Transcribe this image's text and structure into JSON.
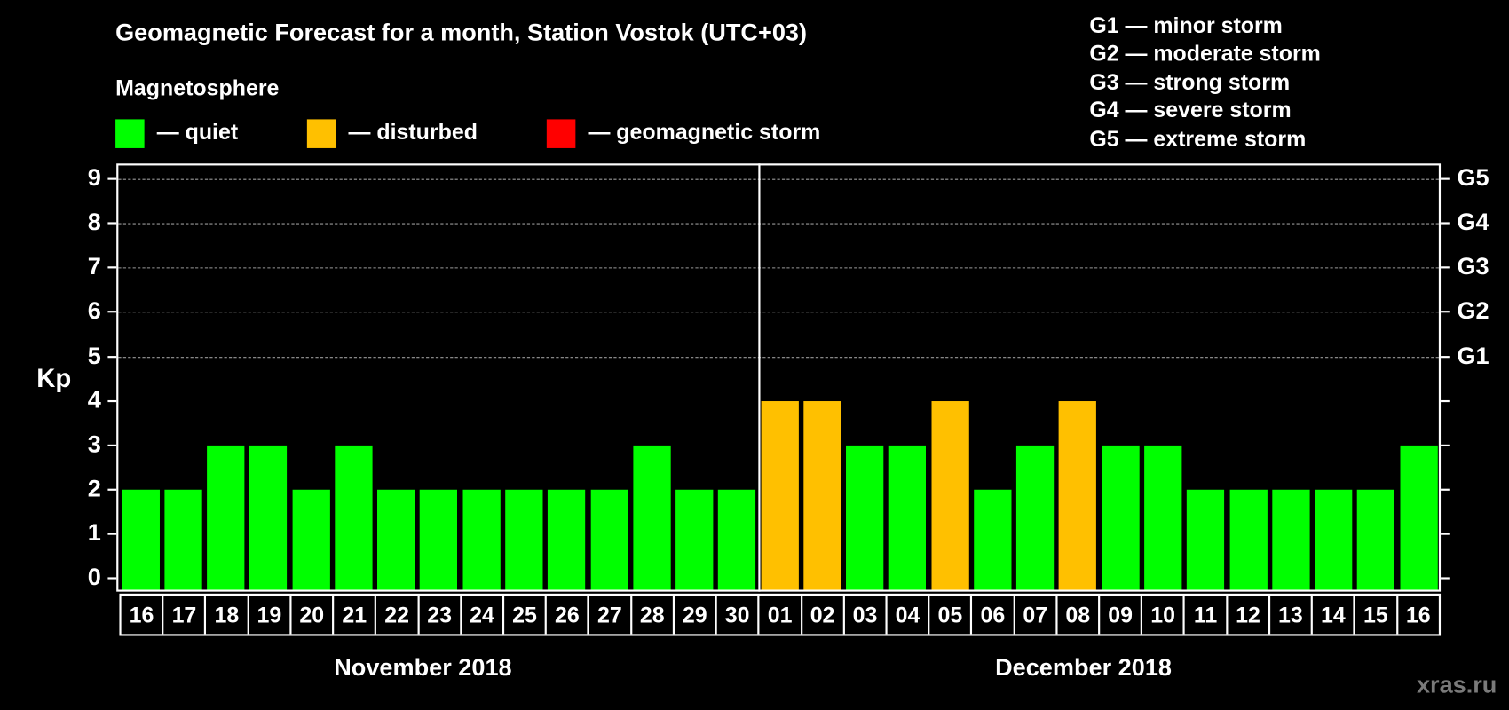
{
  "header": {
    "title": "Geomagnetic Forecast for a month, Station Vostok (UTC+03)",
    "subtitle": "Magnetosphere"
  },
  "legend": [
    {
      "label": "— quiet",
      "color": "#00ff00"
    },
    {
      "label": "— disturbed",
      "color": "#ffc000"
    },
    {
      "label": "— geomagnetic storm",
      "color": "#ff0000"
    }
  ],
  "storm_scale": [
    "G1 — minor storm",
    "G2 — moderate storm",
    "G3 — strong storm",
    "G4 — severe storm",
    "G5 — extreme storm"
  ],
  "axis": {
    "ylabel": "Kp",
    "yticks": [
      "0",
      "1",
      "2",
      "3",
      "4",
      "5",
      "6",
      "7",
      "8",
      "9"
    ],
    "right_labels": {
      "5": "G1",
      "6": "G2",
      "7": "G3",
      "8": "G4",
      "9": "G5"
    }
  },
  "months": {
    "left": "November 2018",
    "right": "December 2018"
  },
  "watermark": "xras.ru",
  "colors": {
    "quiet": "#00ff00",
    "disturbed": "#ffc000",
    "storm": "#ff0000",
    "background": "#000000",
    "grid": "#9a9a9a"
  },
  "chart_data": {
    "type": "bar",
    "title": "Geomagnetic Forecast for a month, Station Vostok (UTC+03)",
    "xlabel": "",
    "ylabel": "Kp",
    "ylim": [
      0,
      9
    ],
    "grid": true,
    "categories": [
      "16",
      "17",
      "18",
      "19",
      "20",
      "21",
      "22",
      "23",
      "24",
      "25",
      "26",
      "27",
      "28",
      "29",
      "30",
      "01",
      "02",
      "03",
      "04",
      "05",
      "06",
      "07",
      "08",
      "09",
      "10",
      "11",
      "12",
      "13",
      "14",
      "15",
      "16"
    ],
    "values": [
      2,
      2,
      3,
      3,
      2,
      3,
      2,
      2,
      2,
      2,
      2,
      2,
      3,
      2,
      2,
      4,
      4,
      3,
      3,
      4,
      2,
      3,
      4,
      3,
      3,
      2,
      2,
      2,
      2,
      2,
      3
    ],
    "status": [
      "quiet",
      "quiet",
      "quiet",
      "quiet",
      "quiet",
      "quiet",
      "quiet",
      "quiet",
      "quiet",
      "quiet",
      "quiet",
      "quiet",
      "quiet",
      "quiet",
      "quiet",
      "disturbed",
      "disturbed",
      "quiet",
      "quiet",
      "disturbed",
      "quiet",
      "quiet",
      "disturbed",
      "quiet",
      "quiet",
      "quiet",
      "quiet",
      "quiet",
      "quiet",
      "quiet",
      "quiet"
    ],
    "month_groups": [
      {
        "label": "November 2018",
        "from": "16",
        "to": "30"
      },
      {
        "label": "December 2018",
        "from": "01",
        "to": "16"
      }
    ],
    "legend": [
      "quiet",
      "disturbed",
      "geomagnetic storm"
    ],
    "right_axis": {
      "5": "G1",
      "6": "G2",
      "7": "G3",
      "8": "G4",
      "9": "G5"
    }
  }
}
